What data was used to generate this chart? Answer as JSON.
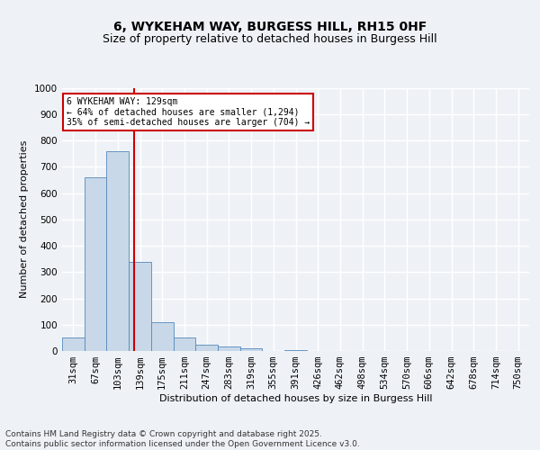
{
  "title_line1": "6, WYKEHAM WAY, BURGESS HILL, RH15 0HF",
  "title_line2": "Size of property relative to detached houses in Burgess Hill",
  "xlabel": "Distribution of detached houses by size in Burgess Hill",
  "ylabel": "Number of detached properties",
  "footer": "Contains HM Land Registry data © Crown copyright and database right 2025.\nContains public sector information licensed under the Open Government Licence v3.0.",
  "bin_labels": [
    "31sqm",
    "67sqm",
    "103sqm",
    "139sqm",
    "175sqm",
    "211sqm",
    "247sqm",
    "283sqm",
    "319sqm",
    "355sqm",
    "391sqm",
    "426sqm",
    "462sqm",
    "498sqm",
    "534sqm",
    "570sqm",
    "606sqm",
    "642sqm",
    "678sqm",
    "714sqm",
    "750sqm"
  ],
  "bar_values": [
    50,
    660,
    760,
    340,
    110,
    50,
    25,
    18,
    10,
    0,
    5,
    0,
    0,
    0,
    0,
    0,
    0,
    0,
    0,
    0,
    0
  ],
  "bar_color": "#c8d8e8",
  "bar_edge_color": "#5588bb",
  "reference_line_x": 2.74,
  "reference_line_label": "6 WYKEHAM WAY: 129sqm",
  "annotation_left": "← 64% of detached houses are smaller (1,294)",
  "annotation_right": "35% of semi-detached houses are larger (704) →",
  "annotation_box_color": "#ffffff",
  "annotation_box_edge": "#cc0000",
  "ref_line_color": "#cc0000",
  "ylim": [
    0,
    1000
  ],
  "yticks": [
    0,
    100,
    200,
    300,
    400,
    500,
    600,
    700,
    800,
    900,
    1000
  ],
  "background_color": "#eef2f7",
  "plot_bg_color": "#eef2f7",
  "grid_color": "#ffffff",
  "title_fontsize": 10,
  "subtitle_fontsize": 9,
  "axis_label_fontsize": 8,
  "tick_fontsize": 7.5,
  "footer_fontsize": 6.5
}
